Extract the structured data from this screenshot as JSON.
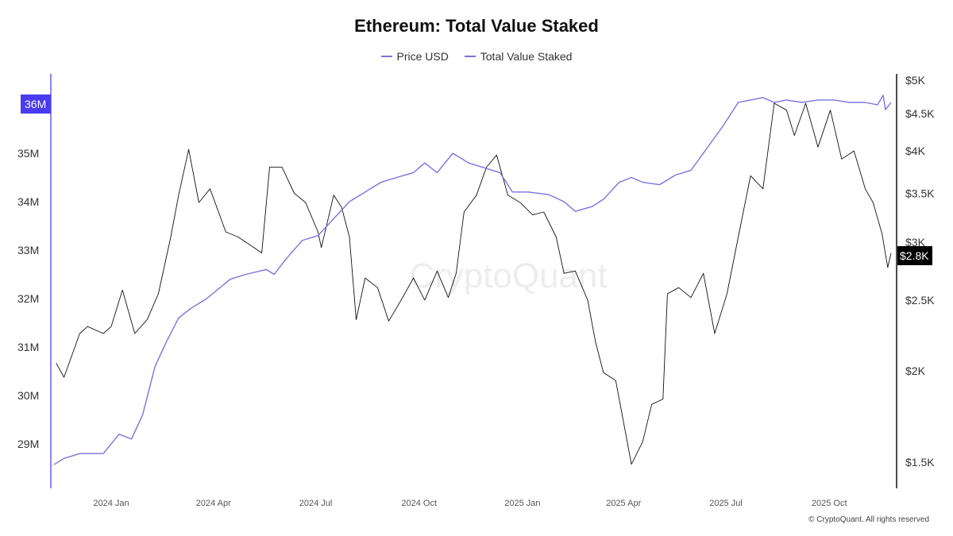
{
  "colors": {
    "staked": "#7b73e0",
    "price": "#111111",
    "left_axis": "#6a5cf0",
    "left_badge": "#4a3af0",
    "right_badge": "#000000"
  },
  "chart_data": {
    "type": "line",
    "title": "Ethereum: Total Value Staked",
    "legend": [
      "Price USD",
      "Total Value Staked"
    ],
    "legend_placement": "top",
    "grid": false,
    "watermark": "CryptoQuant",
    "x_ticks": [
      "2024 Jan",
      "2024 Apr",
      "2024 Jul",
      "2024 Oct",
      "2025 Jan",
      "2025 Apr",
      "2025 Jul",
      "2025 Oct"
    ],
    "x_tick_dates": [
      "2024-01-01",
      "2024-04-01",
      "2024-07-01",
      "2024-10-01",
      "2025-01-01",
      "2025-04-01",
      "2025-07-01",
      "2025-10-01"
    ],
    "xlim": [
      "2023-11-10",
      "2025-11-26"
    ],
    "left_axis": {
      "ticks": [
        "29M",
        "30M",
        "31M",
        "32M",
        "33M",
        "34M",
        "35M"
      ],
      "tick_values": [
        29,
        30,
        31,
        32,
        33,
        34,
        35
      ],
      "current_label": "36M",
      "current_value": 36,
      "ylim": [
        28.3,
        36.9
      ]
    },
    "right_axis": {
      "scale": "log",
      "ticks": [
        "$1.5K",
        "$2K",
        "$2.5K",
        "$3K",
        "$3.5K",
        "$4K",
        "$4.5K",
        "$5K"
      ],
      "tick_values": [
        1500,
        2000,
        2500,
        3000,
        3500,
        4000,
        4500,
        5000
      ],
      "current_label": "$2.8K",
      "current_value": 2800
    },
    "series": [
      {
        "name": "Price USD",
        "axis": "right",
        "color": "#111111",
        "points": [
          [
            "2023-11-13",
            2050
          ],
          [
            "2023-11-20",
            1960
          ],
          [
            "2023-12-04",
            2250
          ],
          [
            "2023-12-11",
            2300
          ],
          [
            "2023-12-25",
            2250
          ],
          [
            "2024-01-01",
            2300
          ],
          [
            "2024-01-11",
            2580
          ],
          [
            "2024-01-22",
            2250
          ],
          [
            "2024-02-02",
            2350
          ],
          [
            "2024-02-12",
            2550
          ],
          [
            "2024-02-23",
            3050
          ],
          [
            "2024-03-01",
            3480
          ],
          [
            "2024-03-10",
            4020
          ],
          [
            "2024-03-19",
            3400
          ],
          [
            "2024-03-29",
            3550
          ],
          [
            "2024-04-12",
            3100
          ],
          [
            "2024-04-23",
            3050
          ],
          [
            "2024-05-07",
            2950
          ],
          [
            "2024-05-14",
            2900
          ],
          [
            "2024-05-21",
            3800
          ],
          [
            "2024-06-01",
            3800
          ],
          [
            "2024-06-12",
            3500
          ],
          [
            "2024-06-22",
            3400
          ],
          [
            "2024-07-03",
            3100
          ],
          [
            "2024-07-06",
            2950
          ],
          [
            "2024-07-17",
            3480
          ],
          [
            "2024-07-24",
            3350
          ],
          [
            "2024-07-31",
            3050
          ],
          [
            "2024-08-06",
            2350
          ],
          [
            "2024-08-14",
            2680
          ],
          [
            "2024-08-25",
            2600
          ],
          [
            "2024-09-04",
            2340
          ],
          [
            "2024-09-15",
            2500
          ],
          [
            "2024-09-26",
            2680
          ],
          [
            "2024-10-06",
            2500
          ],
          [
            "2024-10-17",
            2740
          ],
          [
            "2024-10-27",
            2520
          ],
          [
            "2024-11-03",
            2720
          ],
          [
            "2024-11-10",
            3300
          ],
          [
            "2024-11-21",
            3480
          ],
          [
            "2024-11-30",
            3800
          ],
          [
            "2024-12-09",
            3950
          ],
          [
            "2024-12-19",
            3480
          ],
          [
            "2024-12-30",
            3400
          ],
          [
            "2025-01-10",
            3270
          ],
          [
            "2025-01-20",
            3300
          ],
          [
            "2025-01-31",
            3050
          ],
          [
            "2025-02-07",
            2720
          ],
          [
            "2025-02-17",
            2740
          ],
          [
            "2025-02-28",
            2500
          ],
          [
            "2025-03-07",
            2190
          ],
          [
            "2025-03-14",
            1990
          ],
          [
            "2025-03-25",
            1940
          ],
          [
            "2025-04-08",
            1490
          ],
          [
            "2025-04-18",
            1600
          ],
          [
            "2025-04-26",
            1800
          ],
          [
            "2025-05-06",
            1830
          ],
          [
            "2025-05-10",
            2550
          ],
          [
            "2025-05-20",
            2600
          ],
          [
            "2025-05-31",
            2520
          ],
          [
            "2025-06-11",
            2720
          ],
          [
            "2025-06-21",
            2250
          ],
          [
            "2025-07-02",
            2550
          ],
          [
            "2025-07-12",
            3050
          ],
          [
            "2025-07-23",
            3700
          ],
          [
            "2025-08-03",
            3550
          ],
          [
            "2025-08-13",
            4650
          ],
          [
            "2025-08-24",
            4550
          ],
          [
            "2025-08-31",
            4200
          ],
          [
            "2025-09-10",
            4650
          ],
          [
            "2025-09-21",
            4050
          ],
          [
            "2025-10-02",
            4550
          ],
          [
            "2025-10-12",
            3900
          ],
          [
            "2025-10-23",
            4000
          ],
          [
            "2025-11-02",
            3550
          ],
          [
            "2025-11-09",
            3400
          ],
          [
            "2025-11-17",
            3080
          ],
          [
            "2025-11-22",
            2770
          ],
          [
            "2025-11-25",
            2900
          ]
        ]
      },
      {
        "name": "Total Value Staked",
        "axis": "left",
        "color": "#7b73e0",
        "points": [
          [
            "2023-11-11",
            28.57
          ],
          [
            "2023-11-20",
            28.7
          ],
          [
            "2023-12-04",
            28.8
          ],
          [
            "2023-12-25",
            28.8
          ],
          [
            "2024-01-08",
            29.2
          ],
          [
            "2024-01-19",
            29.1
          ],
          [
            "2024-01-29",
            29.6
          ],
          [
            "2024-02-09",
            30.6
          ],
          [
            "2024-02-19",
            31.1
          ],
          [
            "2024-03-01",
            31.6
          ],
          [
            "2024-03-12",
            31.8
          ],
          [
            "2024-03-26",
            32.0
          ],
          [
            "2024-04-16",
            32.4
          ],
          [
            "2024-04-30",
            32.5
          ],
          [
            "2024-05-18",
            32.6
          ],
          [
            "2024-05-25",
            32.5
          ],
          [
            "2024-06-04",
            32.8
          ],
          [
            "2024-06-19",
            33.2
          ],
          [
            "2024-07-03",
            33.3
          ],
          [
            "2024-07-17",
            33.65
          ],
          [
            "2024-07-31",
            34.0
          ],
          [
            "2024-08-14",
            34.2
          ],
          [
            "2024-08-28",
            34.4
          ],
          [
            "2024-09-11",
            34.5
          ],
          [
            "2024-09-26",
            34.6
          ],
          [
            "2024-10-06",
            34.8
          ],
          [
            "2024-10-17",
            34.6
          ],
          [
            "2024-10-31",
            35.0
          ],
          [
            "2024-11-14",
            34.8
          ],
          [
            "2024-11-28",
            34.7
          ],
          [
            "2024-12-12",
            34.6
          ],
          [
            "2024-12-23",
            34.2
          ],
          [
            "2025-01-06",
            34.2
          ],
          [
            "2025-01-24",
            34.15
          ],
          [
            "2025-02-07",
            34.0
          ],
          [
            "2025-02-17",
            33.8
          ],
          [
            "2025-03-04",
            33.9
          ],
          [
            "2025-03-14",
            34.05
          ],
          [
            "2025-03-28",
            34.4
          ],
          [
            "2025-04-08",
            34.5
          ],
          [
            "2025-04-18",
            34.4
          ],
          [
            "2025-05-03",
            34.35
          ],
          [
            "2025-05-17",
            34.55
          ],
          [
            "2025-05-31",
            34.65
          ],
          [
            "2025-06-14",
            35.1
          ],
          [
            "2025-06-28",
            35.55
          ],
          [
            "2025-07-12",
            36.05
          ],
          [
            "2025-07-23",
            36.1
          ],
          [
            "2025-08-03",
            36.15
          ],
          [
            "2025-08-13",
            36.05
          ],
          [
            "2025-08-24",
            36.1
          ],
          [
            "2025-09-07",
            36.05
          ],
          [
            "2025-09-21",
            36.1
          ],
          [
            "2025-10-05",
            36.1
          ],
          [
            "2025-10-19",
            36.05
          ],
          [
            "2025-11-02",
            36.05
          ],
          [
            "2025-11-13",
            36.0
          ],
          [
            "2025-11-18",
            36.2
          ],
          [
            "2025-11-20",
            35.9
          ],
          [
            "2025-11-25",
            36.05
          ]
        ]
      }
    ]
  },
  "footer": "© CryptoQuant. All rights reserved"
}
